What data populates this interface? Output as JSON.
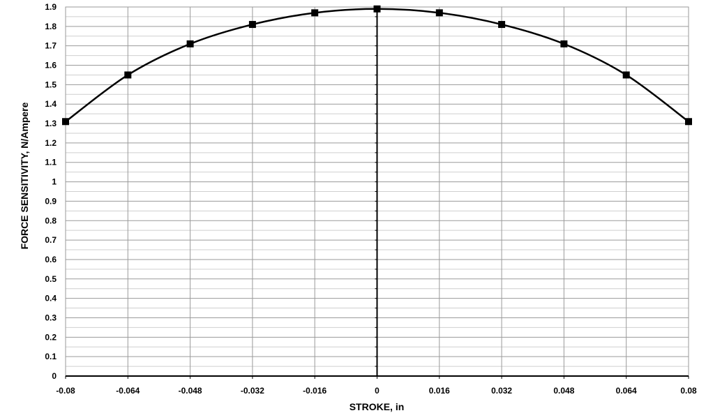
{
  "chart_data": {
    "type": "line",
    "xlabel": "STROKE, in",
    "ylabel": "FORCE SENSITIVITY, N/Ampere",
    "xlim": [
      -0.08,
      0.08
    ],
    "ylim": [
      0,
      1.9
    ],
    "x_ticks": [
      "-0.08",
      "-0.064",
      "-0.048",
      "-0.032",
      "-0.016",
      "0",
      "0.016",
      "0.032",
      "0.048",
      "0.064",
      "0.08"
    ],
    "y_ticks": [
      "0",
      "0.1",
      "0.2",
      "0.3",
      "0.4",
      "0.5",
      "0.6",
      "0.7",
      "0.8",
      "0.9",
      "1",
      "1.1",
      "1.2",
      "1.3",
      "1.4",
      "1.5",
      "1.6",
      "1.7",
      "1.8",
      "1.9"
    ],
    "grid": true,
    "marker": "square",
    "line_color": "#000000",
    "series": [
      {
        "x": [
          -0.08,
          -0.064,
          -0.048,
          -0.032,
          -0.016,
          0,
          0.016,
          0.032,
          0.048,
          0.064,
          0.08
        ],
        "y": [
          1.31,
          1.55,
          1.71,
          1.81,
          1.87,
          1.89,
          1.87,
          1.81,
          1.71,
          1.55,
          1.31
        ]
      }
    ]
  }
}
